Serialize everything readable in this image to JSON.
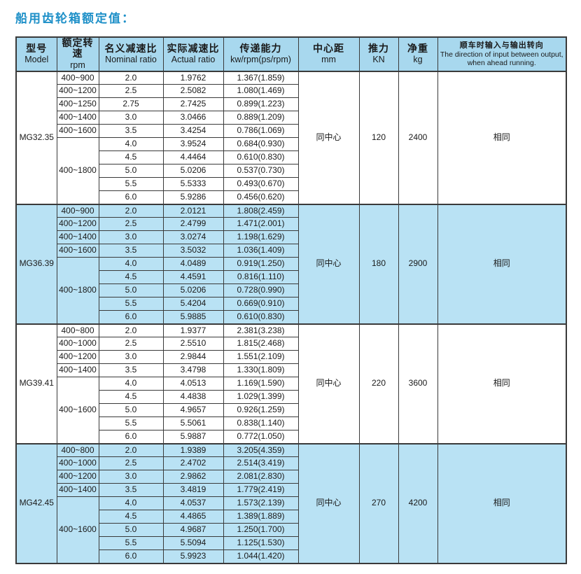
{
  "title": "船用齿轮箱额定值：",
  "colors": {
    "title": "#1e90c8",
    "header_bg": "#a8d8ee",
    "row_highlight_bg": "#b9e2f4",
    "border": "#3a3a3a"
  },
  "table": {
    "headers": [
      {
        "zh": "型号",
        "en": "Model"
      },
      {
        "zh": "额定转速",
        "en": "rpm"
      },
      {
        "zh": "名义减速比",
        "en": "Nominal ratio"
      },
      {
        "zh": "实际减速比",
        "en": "Actual ratio"
      },
      {
        "zh": "传递能力",
        "en": "kw/rpm(ps/rpm)"
      },
      {
        "zh": "中心距",
        "en": "mm"
      },
      {
        "zh": "推力",
        "en": "KN"
      },
      {
        "zh": "净重",
        "en": "kg"
      },
      {
        "zh": "顺车时输入与输出转向",
        "en": "The direction of input between output, when ahead running."
      }
    ],
    "groups": [
      {
        "model": "MG32.35",
        "highlighted": false,
        "rows": [
          {
            "rpm": "400~900",
            "nominal": "2.0",
            "actual": "1.9762",
            "capacity": "1.367(1.859)"
          },
          {
            "rpm": "400~1200",
            "nominal": "2.5",
            "actual": "2.5082",
            "capacity": "1.080(1.469)"
          },
          {
            "rpm": "400~1250",
            "nominal": "2.75",
            "actual": "2.7425",
            "capacity": "0.899(1.223)"
          },
          {
            "rpm": "400~1400",
            "nominal": "3.0",
            "actual": "3.0466",
            "capacity": "0.889(1.209)"
          },
          {
            "rpm": "400~1600",
            "nominal": "3.5",
            "actual": "3.4254",
            "capacity": "0.786(1.069)"
          },
          {
            "rpm": null,
            "nominal": "4.0",
            "actual": "3.9524",
            "capacity": "0.684(0.930)"
          },
          {
            "rpm": null,
            "nominal": "4.5",
            "actual": "4.4464",
            "capacity": "0.610(0.830)"
          },
          {
            "rpm": null,
            "nominal": "5.0",
            "actual": "5.0206",
            "capacity": "0.537(0.730)"
          },
          {
            "rpm": null,
            "nominal": "5.5",
            "actual": "5.5333",
            "capacity": "0.493(0.670)"
          },
          {
            "rpm": null,
            "nominal": "6.0",
            "actual": "5.9286",
            "capacity": "0.456(0.620)"
          }
        ],
        "rpm_merged": {
          "label": "400~1800",
          "start": 5,
          "span": 5
        },
        "center_distance": "同中心",
        "thrust": "120",
        "net_weight": "2400",
        "direction": "相同"
      },
      {
        "model": "MG36.39",
        "highlighted": true,
        "rows": [
          {
            "rpm": "400~900",
            "nominal": "2.0",
            "actual": "2.0121",
            "capacity": "1.808(2.459)"
          },
          {
            "rpm": "400~1200",
            "nominal": "2.5",
            "actual": "2.4799",
            "capacity": "1.471(2.001)"
          },
          {
            "rpm": "400~1400",
            "nominal": "3.0",
            "actual": "3.0274",
            "capacity": "1.198(1.629)"
          },
          {
            "rpm": "400~1600",
            "nominal": "3.5",
            "actual": "3.5032",
            "capacity": "1.036(1.409)"
          },
          {
            "rpm": null,
            "nominal": "4.0",
            "actual": "4.0489",
            "capacity": "0.919(1.250)"
          },
          {
            "rpm": null,
            "nominal": "4.5",
            "actual": "4.4591",
            "capacity": "0.816(1.110)"
          },
          {
            "rpm": null,
            "nominal": "5.0",
            "actual": "5.0206",
            "capacity": "0.728(0.990)"
          },
          {
            "rpm": null,
            "nominal": "5.5",
            "actual": "5.4204",
            "capacity": "0.669(0.910)"
          },
          {
            "rpm": null,
            "nominal": "6.0",
            "actual": "5.9885",
            "capacity": "0.610(0.830)"
          }
        ],
        "rpm_merged": {
          "label": "400~1800",
          "start": 4,
          "span": 5
        },
        "center_distance": "同中心",
        "thrust": "180",
        "net_weight": "2900",
        "direction": "相同"
      },
      {
        "model": "MG39.41",
        "highlighted": false,
        "rows": [
          {
            "rpm": "400~800",
            "nominal": "2.0",
            "actual": "1.9377",
            "capacity": "2.381(3.238)"
          },
          {
            "rpm": "400~1000",
            "nominal": "2.5",
            "actual": "2.5510",
            "capacity": "1.815(2.468)"
          },
          {
            "rpm": "400~1200",
            "nominal": "3.0",
            "actual": "2.9844",
            "capacity": "1.551(2.109)"
          },
          {
            "rpm": "400~1400",
            "nominal": "3.5",
            "actual": "3.4798",
            "capacity": "1.330(1.809)"
          },
          {
            "rpm": null,
            "nominal": "4.0",
            "actual": "4.0513",
            "capacity": "1.169(1.590)"
          },
          {
            "rpm": null,
            "nominal": "4.5",
            "actual": "4.4838",
            "capacity": "1.029(1.399)"
          },
          {
            "rpm": null,
            "nominal": "5.0",
            "actual": "4.9657",
            "capacity": "0.926(1.259)"
          },
          {
            "rpm": null,
            "nominal": "5.5",
            "actual": "5.5061",
            "capacity": "0.838(1.140)"
          },
          {
            "rpm": null,
            "nominal": "6.0",
            "actual": "5.9887",
            "capacity": "0.772(1.050)"
          }
        ],
        "rpm_merged": {
          "label": "400~1600",
          "start": 4,
          "span": 5
        },
        "center_distance": "同中心",
        "thrust": "220",
        "net_weight": "3600",
        "direction": "相同"
      },
      {
        "model": "MG42.45",
        "highlighted": true,
        "rows": [
          {
            "rpm": "400~800",
            "nominal": "2.0",
            "actual": "1.9389",
            "capacity": "3.205(4.359)"
          },
          {
            "rpm": "400~1000",
            "nominal": "2.5",
            "actual": "2.4702",
            "capacity": "2.514(3.419)"
          },
          {
            "rpm": "400~1200",
            "nominal": "3.0",
            "actual": "2.9862",
            "capacity": "2.081(2.830)"
          },
          {
            "rpm": "400~1400",
            "nominal": "3.5",
            "actual": "3.4819",
            "capacity": "1.779(2.419)"
          },
          {
            "rpm": null,
            "nominal": "4.0",
            "actual": "4.0537",
            "capacity": "1.573(2.139)"
          },
          {
            "rpm": null,
            "nominal": "4.5",
            "actual": "4.4865",
            "capacity": "1.389(1.889)"
          },
          {
            "rpm": null,
            "nominal": "5.0",
            "actual": "4.9687",
            "capacity": "1.250(1.700)"
          },
          {
            "rpm": null,
            "nominal": "5.5",
            "actual": "5.5094",
            "capacity": "1.125(1.530)"
          },
          {
            "rpm": null,
            "nominal": "6.0",
            "actual": "5.9923",
            "capacity": "1.044(1.420)"
          }
        ],
        "rpm_merged": {
          "label": "400~1600",
          "start": 4,
          "span": 5
        },
        "center_distance": "同中心",
        "thrust": "270",
        "net_weight": "4200",
        "direction": "相同"
      }
    ]
  }
}
